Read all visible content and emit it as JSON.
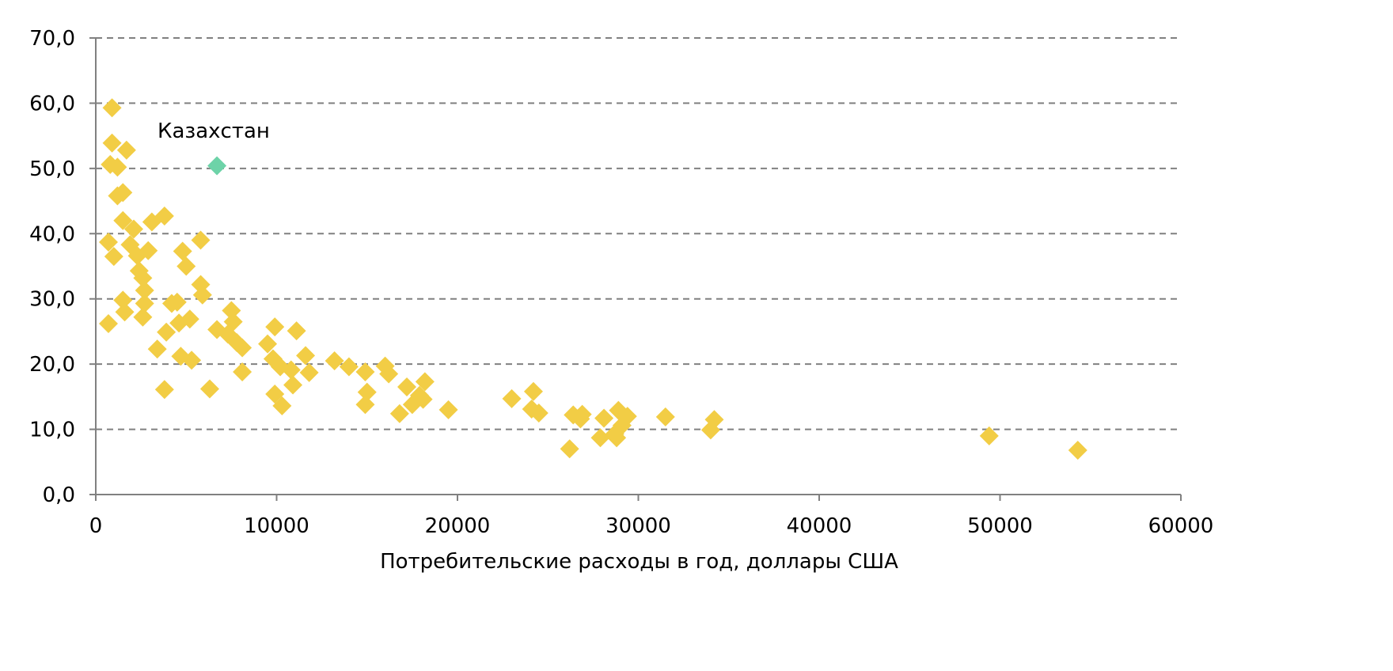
{
  "chart_data": {
    "type": "scatter",
    "xlabel": "Потребительские расходы в год, доллары США",
    "ylabel": "",
    "xlim": [
      0,
      60000
    ],
    "ylim": [
      0,
      70
    ],
    "x_ticks": [
      0,
      10000,
      20000,
      30000,
      40000,
      50000,
      60000
    ],
    "x_tick_labels": [
      "0",
      "10000",
      "20000",
      "30000",
      "40000",
      "50000",
      "60000"
    ],
    "y_ticks": [
      0,
      10,
      20,
      30,
      40,
      50,
      60,
      70
    ],
    "y_tick_labels": [
      "0,0",
      "10,0",
      "20,0",
      "30,0",
      "40,0",
      "50,0",
      "60,0",
      "70,0"
    ],
    "grid": "horizontal dashed",
    "legend": "none",
    "colors": {
      "countries": "#F2CD45",
      "highlight": "#6DD3A8",
      "grid": "#808080",
      "axis": "#808080"
    },
    "annotation": {
      "text": "Казахстан",
      "x": 6700,
      "y": 50.4
    },
    "series": [
      {
        "color": "#F2CD45",
        "marker": "diamond",
        "points": [
          {
            "x": 900,
            "y": 59.3
          },
          {
            "x": 900,
            "y": 53.9
          },
          {
            "x": 1700,
            "y": 52.8
          },
          {
            "x": 800,
            "y": 50.6
          },
          {
            "x": 1200,
            "y": 50.2
          },
          {
            "x": 1500,
            "y": 46.3
          },
          {
            "x": 1200,
            "y": 45.8
          },
          {
            "x": 3800,
            "y": 42.7
          },
          {
            "x": 1500,
            "y": 42.0
          },
          {
            "x": 3100,
            "y": 41.8
          },
          {
            "x": 2100,
            "y": 40.7
          },
          {
            "x": 5800,
            "y": 39.0
          },
          {
            "x": 700,
            "y": 38.7
          },
          {
            "x": 1900,
            "y": 38.3
          },
          {
            "x": 2900,
            "y": 37.4
          },
          {
            "x": 4800,
            "y": 37.3
          },
          {
            "x": 1000,
            "y": 36.5
          },
          {
            "x": 2300,
            "y": 36.6
          },
          {
            "x": 5000,
            "y": 35.0
          },
          {
            "x": 2400,
            "y": 34.3
          },
          {
            "x": 2600,
            "y": 33.2
          },
          {
            "x": 5800,
            "y": 32.2
          },
          {
            "x": 2700,
            "y": 31.3
          },
          {
            "x": 5900,
            "y": 30.6
          },
          {
            "x": 1500,
            "y": 29.8
          },
          {
            "x": 2700,
            "y": 29.3
          },
          {
            "x": 4200,
            "y": 29.3
          },
          {
            "x": 4500,
            "y": 29.5
          },
          {
            "x": 7500,
            "y": 28.2
          },
          {
            "x": 1600,
            "y": 28.0
          },
          {
            "x": 2600,
            "y": 27.2
          },
          {
            "x": 5200,
            "y": 26.9
          },
          {
            "x": 700,
            "y": 26.2
          },
          {
            "x": 4600,
            "y": 26.3
          },
          {
            "x": 7600,
            "y": 26.5
          },
          {
            "x": 9900,
            "y": 25.7
          },
          {
            "x": 6700,
            "y": 25.3
          },
          {
            "x": 11100,
            "y": 25.1
          },
          {
            "x": 3900,
            "y": 24.9
          },
          {
            "x": 7300,
            "y": 24.6
          },
          {
            "x": 7800,
            "y": 23.3
          },
          {
            "x": 9500,
            "y": 23.1
          },
          {
            "x": 8100,
            "y": 22.5
          },
          {
            "x": 3400,
            "y": 22.3
          },
          {
            "x": 11600,
            "y": 21.3
          },
          {
            "x": 4700,
            "y": 21.2
          },
          {
            "x": 5300,
            "y": 20.6
          },
          {
            "x": 9800,
            "y": 20.8
          },
          {
            "x": 13200,
            "y": 20.5
          },
          {
            "x": 10200,
            "y": 19.6
          },
          {
            "x": 14000,
            "y": 19.6
          },
          {
            "x": 16000,
            "y": 19.7
          },
          {
            "x": 10800,
            "y": 19.1
          },
          {
            "x": 14900,
            "y": 18.8
          },
          {
            "x": 8100,
            "y": 18.8
          },
          {
            "x": 11800,
            "y": 18.7
          },
          {
            "x": 16200,
            "y": 18.5
          },
          {
            "x": 18200,
            "y": 17.3
          },
          {
            "x": 10900,
            "y": 16.8
          },
          {
            "x": 17200,
            "y": 16.5
          },
          {
            "x": 3800,
            "y": 16.1
          },
          {
            "x": 6300,
            "y": 16.2
          },
          {
            "x": 15000,
            "y": 15.7
          },
          {
            "x": 9900,
            "y": 15.4
          },
          {
            "x": 24200,
            "y": 15.8
          },
          {
            "x": 17900,
            "y": 15.2
          },
          {
            "x": 23000,
            "y": 14.7
          },
          {
            "x": 18100,
            "y": 14.6
          },
          {
            "x": 14900,
            "y": 13.8
          },
          {
            "x": 17500,
            "y": 13.8
          },
          {
            "x": 10300,
            "y": 13.6
          },
          {
            "x": 19500,
            "y": 13.0
          },
          {
            "x": 24100,
            "y": 13.1
          },
          {
            "x": 28900,
            "y": 12.9
          },
          {
            "x": 16800,
            "y": 12.4
          },
          {
            "x": 24500,
            "y": 12.5
          },
          {
            "x": 26400,
            "y": 12.2
          },
          {
            "x": 26900,
            "y": 12.3
          },
          {
            "x": 29400,
            "y": 12.0
          },
          {
            "x": 31500,
            "y": 11.9
          },
          {
            "x": 26800,
            "y": 11.6
          },
          {
            "x": 28100,
            "y": 11.7
          },
          {
            "x": 34200,
            "y": 11.5
          },
          {
            "x": 29100,
            "y": 10.6
          },
          {
            "x": 34000,
            "y": 9.9
          },
          {
            "x": 28700,
            "y": 9.3
          },
          {
            "x": 49400,
            "y": 9.0
          },
          {
            "x": 27900,
            "y": 8.7
          },
          {
            "x": 28800,
            "y": 8.7
          },
          {
            "x": 26200,
            "y": 7.0
          },
          {
            "x": 54300,
            "y": 6.8
          }
        ]
      },
      {
        "color": "#6DD3A8",
        "marker": "diamond",
        "points": [
          {
            "x": 6700,
            "y": 50.4
          }
        ]
      }
    ]
  }
}
